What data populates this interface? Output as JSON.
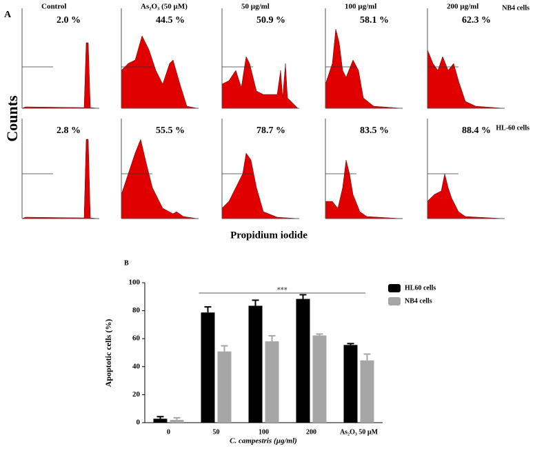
{
  "panel_a": {
    "label": "A",
    "y_label": "Counts",
    "x_label": "Propidium iodide",
    "titles": [
      "Control",
      "As₂O₃ (50 µM)",
      "50 µg/ml",
      "100 µg/ml",
      "200 µg/ml"
    ],
    "rows": [
      {
        "name": "NB4 cells",
        "percents": [
          "2.0 %",
          "44.5 %",
          "50.9 %",
          "58.1 %",
          "62.3 %"
        ]
      },
      {
        "name": "HL-60 cells",
        "percents": [
          "2.8 %",
          "55.5 %",
          "78.7 %",
          "83.5 %",
          "88.4 %"
        ]
      }
    ]
  },
  "chart_data": {
    "type": "bar",
    "title": "B",
    "x_label": "C. campestris (µg/ml)",
    "y_label": "Apoptotic cells (%)",
    "categories": [
      "0",
      "50",
      "100",
      "200",
      "As₂O₃ 50 µM"
    ],
    "series": [
      {
        "name": "HL60 cells",
        "color": "#000000",
        "values": [
          2.8,
          78.7,
          83.5,
          88.4,
          55.5
        ],
        "errors": [
          1.5,
          4,
          4,
          3,
          1
        ]
      },
      {
        "name": "NB4 cells",
        "color": "#a6a6a6",
        "values": [
          2.0,
          50.9,
          58.1,
          62.3,
          44.5
        ],
        "errors": [
          1.5,
          4,
          4,
          1,
          4.5
        ]
      }
    ],
    "annotation": "***",
    "ylim": [
      0,
      100
    ],
    "yticks": [
      0,
      20,
      40,
      60,
      80,
      100
    ],
    "legend": "right"
  }
}
